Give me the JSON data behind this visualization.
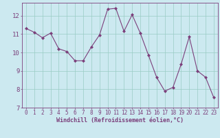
{
  "x": [
    0,
    1,
    2,
    3,
    4,
    5,
    6,
    7,
    8,
    9,
    10,
    11,
    12,
    13,
    14,
    15,
    16,
    17,
    18,
    19,
    20,
    21,
    22,
    23
  ],
  "y": [
    11.3,
    11.1,
    10.8,
    11.05,
    10.2,
    10.05,
    9.55,
    9.55,
    10.3,
    10.95,
    12.35,
    12.4,
    11.15,
    12.05,
    11.05,
    9.85,
    8.65,
    7.9,
    8.1,
    9.35,
    10.85,
    9.0,
    8.65,
    7.55
  ],
  "xlim": [
    -0.5,
    23.5
  ],
  "ylim": [
    7.0,
    12.7
  ],
  "yticks": [
    7,
    8,
    9,
    10,
    11,
    12
  ],
  "xticks": [
    0,
    1,
    2,
    3,
    4,
    5,
    6,
    7,
    8,
    9,
    10,
    11,
    12,
    13,
    14,
    15,
    16,
    17,
    18,
    19,
    20,
    21,
    22,
    23
  ],
  "xlabel": "Windchill (Refroidissement éolien,°C)",
  "line_color": "#7b3f7b",
  "marker_color": "#7b3f7b",
  "bg_color": "#cce9f0",
  "grid_color": "#99ccc4",
  "tick_color": "#7b3f7b",
  "label_color": "#7b3f7b",
  "xlabel_fontsize": 6.0,
  "ytick_fontsize": 6.5,
  "xtick_fontsize": 5.5
}
